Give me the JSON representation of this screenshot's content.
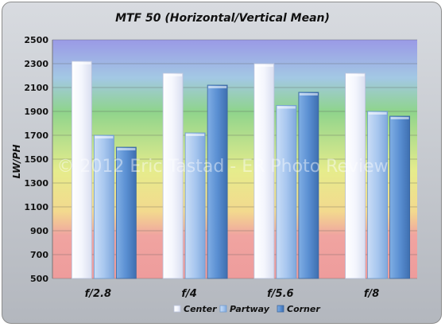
{
  "chart_data": {
    "type": "bar",
    "title": "MTF 50 (Horizontal/Vertical Mean)",
    "ylabel": "LW/PH",
    "xlabel": "",
    "categories": [
      "f/2.8",
      "f/4",
      "f/5.6",
      "f/8"
    ],
    "series": [
      {
        "name": "Center",
        "values": [
          2320,
          2220,
          2300,
          2220
        ]
      },
      {
        "name": "Partway",
        "values": [
          1700,
          1720,
          1950,
          1900
        ]
      },
      {
        "name": "Corner",
        "values": [
          1600,
          2120,
          2060,
          1860
        ]
      }
    ],
    "ylim": [
      500,
      2500
    ],
    "yticks": [
      500,
      700,
      900,
      1100,
      1300,
      1500,
      1700,
      1900,
      2100,
      2300,
      2500
    ],
    "grid": true,
    "legend": "bottom",
    "watermark": "© 2012 Eric Tastad - ER Photo Review",
    "colors": {
      "Center": "#f0f3fc",
      "Partway": "#a9c8f0",
      "Corner": "#5a8fd2"
    }
  }
}
